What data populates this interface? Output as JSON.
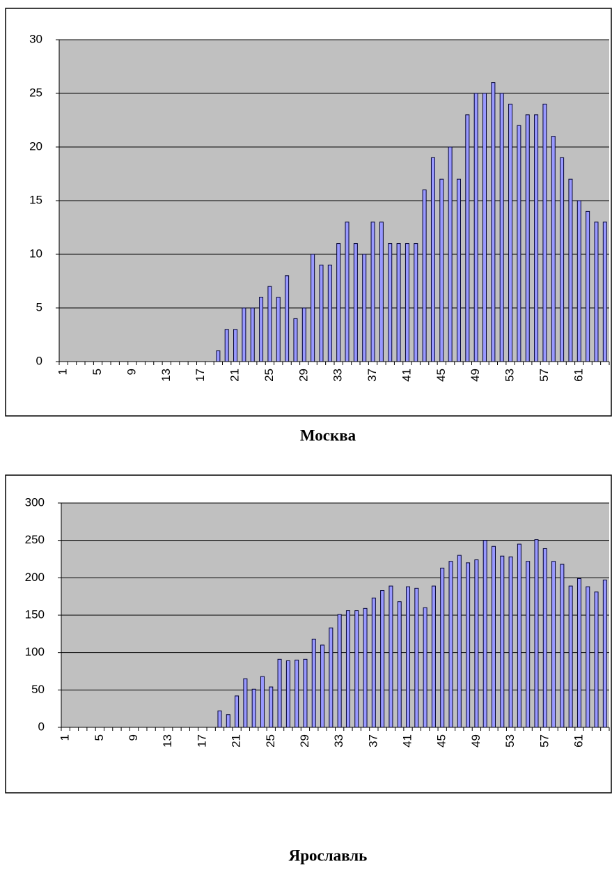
{
  "chart_data": [
    {
      "type": "bar",
      "title": "Москва",
      "color": "#9999ff",
      "grid": true,
      "categories": [
        1,
        null,
        null,
        null,
        5,
        null,
        null,
        null,
        9,
        null,
        null,
        null,
        13,
        null,
        null,
        null,
        17,
        null,
        null,
        null,
        21,
        null,
        null,
        null,
        25,
        null,
        null,
        null,
        29,
        null,
        null,
        null,
        33,
        null,
        null,
        null,
        37,
        null,
        null,
        null,
        41,
        null,
        null,
        null,
        45,
        null,
        null,
        null,
        49,
        null,
        null,
        null,
        53,
        null,
        null,
        null,
        57,
        null,
        null,
        null,
        61,
        null,
        null,
        null
      ],
      "values": [
        0,
        0,
        0,
        0,
        0,
        0,
        0,
        0,
        0,
        0,
        0,
        0,
        0,
        0,
        0,
        0,
        0,
        0,
        1,
        3,
        3,
        5,
        5,
        6,
        7,
        6,
        8,
        4,
        5,
        10,
        9,
        9,
        11,
        13,
        11,
        10,
        13,
        13,
        11,
        11,
        11,
        11,
        16,
        19,
        17,
        20,
        17,
        23,
        25,
        25,
        26,
        25,
        24,
        22,
        23,
        23,
        24,
        21,
        19,
        17,
        15,
        14,
        13,
        13
      ],
      "ylim": [
        0,
        30
      ],
      "yticks": [
        0,
        5,
        10,
        15,
        20,
        25,
        30
      ]
    },
    {
      "type": "bar",
      "title": "Ярославль",
      "color": "#9999ff",
      "grid": true,
      "categories": [
        1,
        null,
        null,
        null,
        5,
        null,
        null,
        null,
        9,
        null,
        null,
        null,
        13,
        null,
        null,
        null,
        17,
        null,
        null,
        null,
        21,
        null,
        null,
        null,
        25,
        null,
        null,
        null,
        29,
        null,
        null,
        null,
        33,
        null,
        null,
        null,
        37,
        null,
        null,
        null,
        41,
        null,
        null,
        null,
        45,
        null,
        null,
        null,
        49,
        null,
        null,
        null,
        53,
        null,
        null,
        null,
        57,
        null,
        null,
        null,
        61,
        null,
        null,
        null
      ],
      "values": [
        0,
        0,
        0,
        0,
        0,
        0,
        0,
        0,
        0,
        0,
        0,
        0,
        0,
        0,
        0,
        0,
        0,
        0,
        22,
        17,
        42,
        65,
        51,
        68,
        54,
        91,
        89,
        90,
        91,
        118,
        110,
        133,
        151,
        156,
        156,
        159,
        173,
        183,
        189,
        168,
        188,
        186,
        160,
        189,
        213,
        222,
        230,
        220,
        224,
        250,
        242,
        229,
        228,
        245,
        222,
        251,
        239,
        222,
        218,
        189,
        199,
        188,
        181,
        197
      ],
      "ylim": [
        0,
        300
      ],
      "yticks": [
        0,
        50,
        100,
        150,
        200,
        250,
        300
      ]
    }
  ]
}
